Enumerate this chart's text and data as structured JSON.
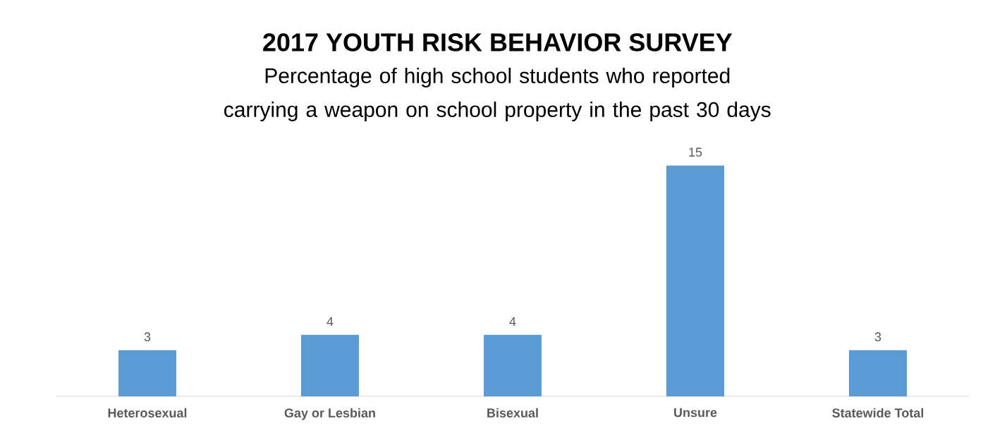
{
  "chart_data": {
    "type": "bar",
    "title": "2017 YOUTH RISK BEHAVIOR SURVEY",
    "subtitle": "Percentage of high school students who reported carrying a weapon on school property in the past 30 days",
    "categories": [
      "Heterosexual",
      "Gay or Lesbian",
      "Bisexual",
      "Unsure",
      "Statewide Total"
    ],
    "values": [
      3,
      4,
      4,
      15,
      3
    ],
    "color": "#5b9bd5",
    "data_labels": true,
    "tick_labels": "x"
  }
}
